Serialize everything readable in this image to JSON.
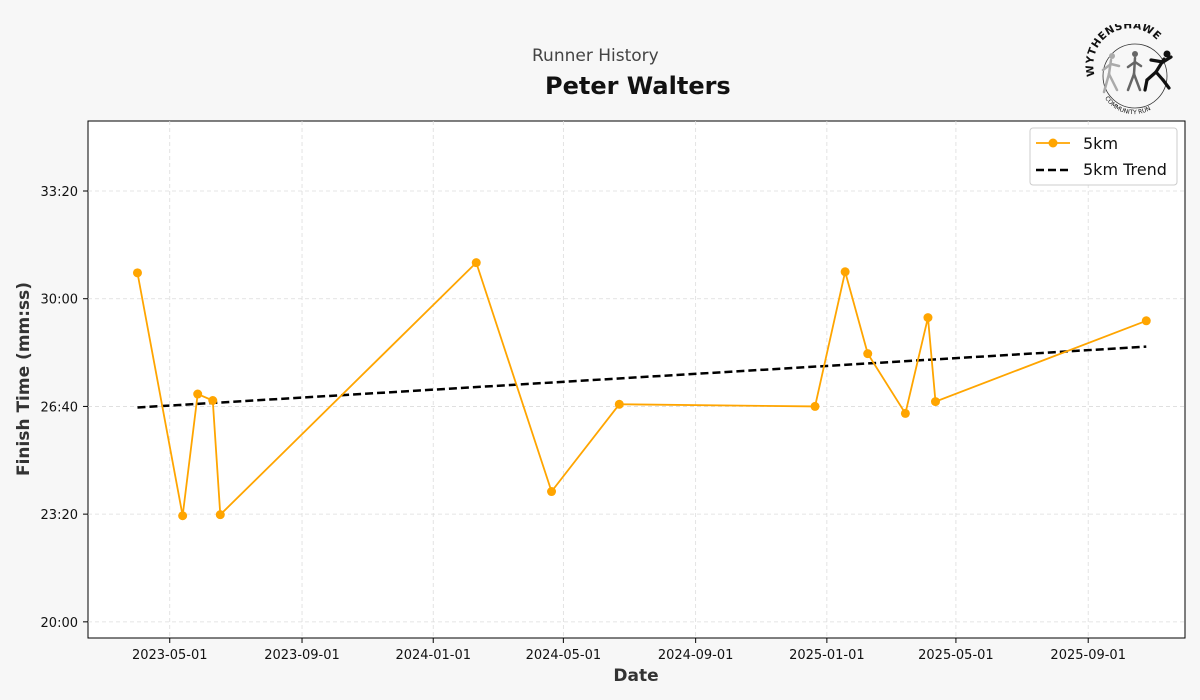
{
  "header": {
    "subtitle": "Runner History",
    "title": "Peter Walters"
  },
  "logo": {
    "top_text": "WYTHENSHAWE",
    "bottom_text": "COMMUNITY RUN"
  },
  "chart_data": {
    "type": "line",
    "xlabel": "Date",
    "ylabel": "Finish Time (mm:ss)",
    "ylim_seconds": [
      1170,
      2130
    ],
    "xlim": [
      "2023-02-14",
      "2025-11-30"
    ],
    "grid": true,
    "legend_position": "top-right",
    "x_ticks": [
      "2023-05-01",
      "2023-09-01",
      "2024-01-01",
      "2024-05-01",
      "2024-09-01",
      "2025-01-01",
      "2025-05-01",
      "2025-09-01"
    ],
    "y_ticks": [
      "20:00",
      "23:20",
      "26:40",
      "30:00",
      "33:20"
    ],
    "y_tick_seconds": [
      1200,
      1400,
      1600,
      1800,
      2000
    ],
    "series": [
      {
        "name": "5km",
        "color": "#FFA500",
        "marker": "circle",
        "x": [
          "2023-04-01",
          "2023-05-13",
          "2023-05-27",
          "2023-06-10",
          "2023-06-17",
          "2024-02-10",
          "2024-04-20",
          "2024-06-22",
          "2024-12-21",
          "2025-01-18",
          "2025-02-08",
          "2025-03-15",
          "2025-04-05",
          "2025-04-12",
          "2025-10-25"
        ],
        "y": [
          "30:48",
          "23:17",
          "27:03",
          "26:51",
          "23:19",
          "31:07",
          "24:02",
          "26:44",
          "26:40",
          "30:50",
          "28:18",
          "26:27",
          "29:25",
          "26:49",
          "29:19"
        ]
      },
      {
        "name": "5km Trend",
        "color": "#000000",
        "style": "dashed",
        "x": [
          "2023-04-01",
          "2025-10-25"
        ],
        "y": [
          "26:38",
          "28:31"
        ]
      }
    ]
  }
}
